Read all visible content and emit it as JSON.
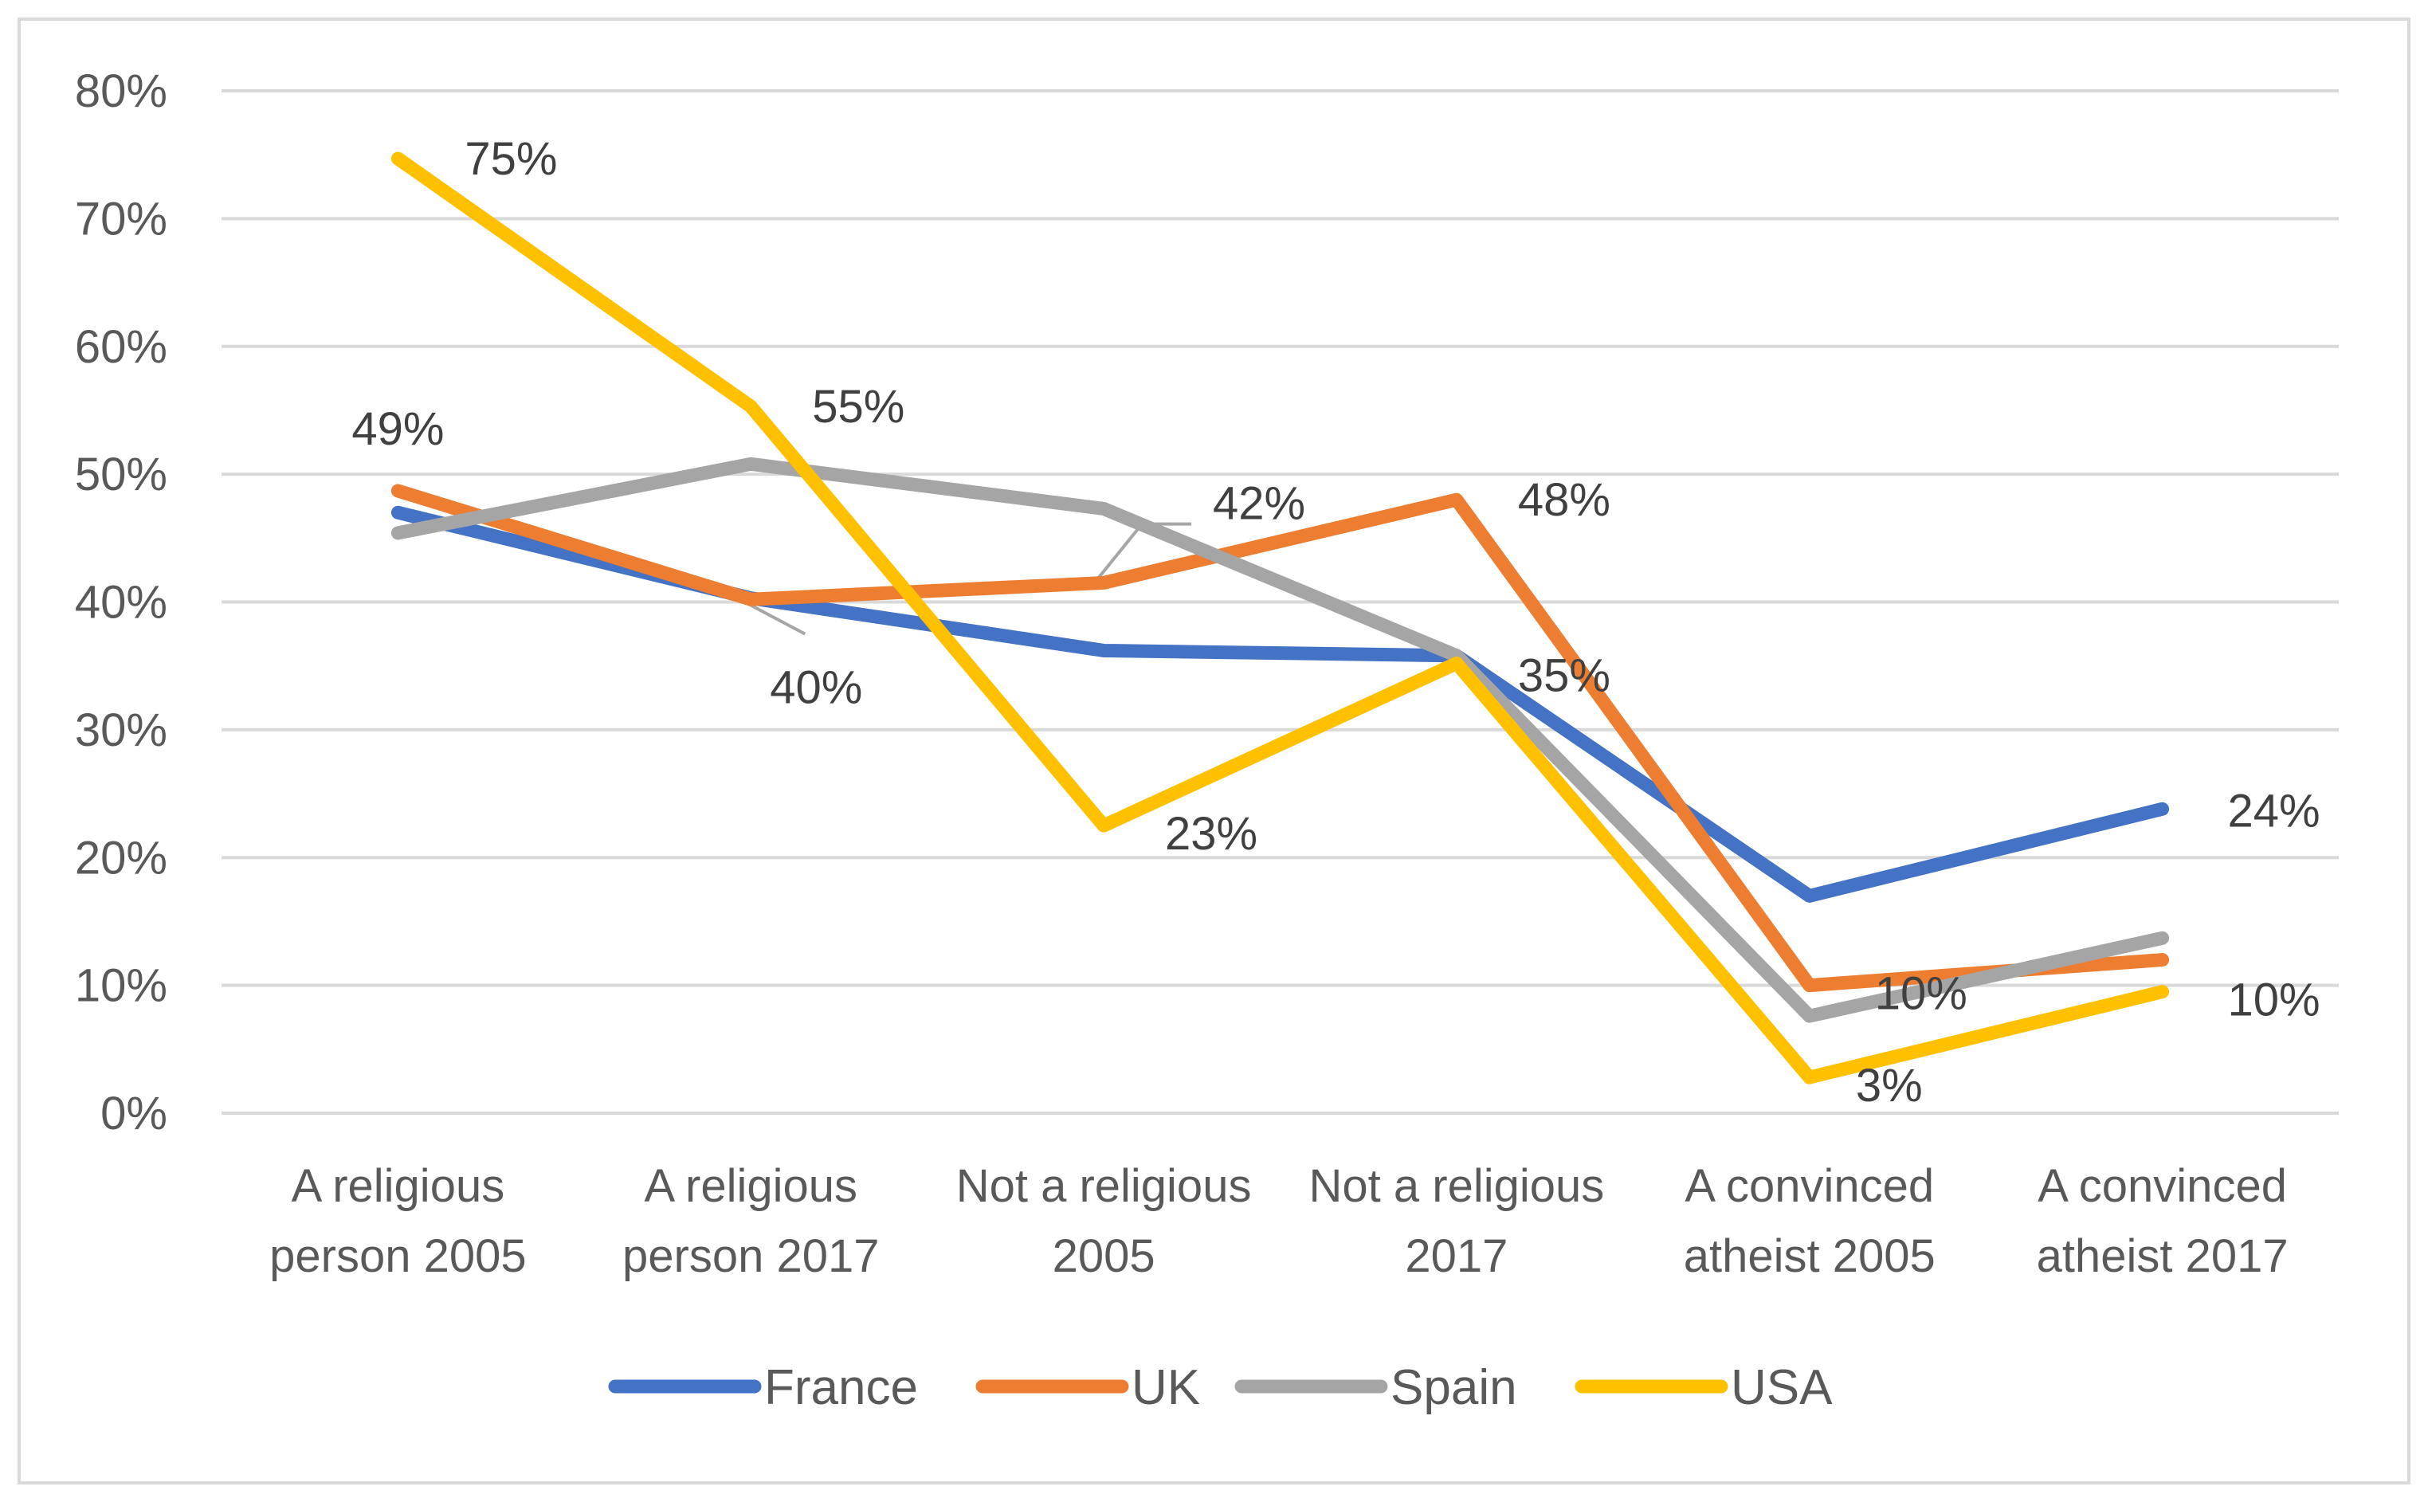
{
  "chart_data": {
    "type": "line",
    "title": "",
    "xlabel": "",
    "ylabel": "",
    "ylim": [
      0,
      80
    ],
    "y_ticks": [
      0,
      10,
      20,
      30,
      40,
      50,
      60,
      70,
      80
    ],
    "y_tick_labels": [
      "0%",
      "10%",
      "20%",
      "30%",
      "40%",
      "50%",
      "60%",
      "70%",
      "80%"
    ],
    "grid": true,
    "legend_position": "bottom",
    "categories": [
      [
        "A religious",
        "person 2005"
      ],
      [
        "A religious",
        "person 2017"
      ],
      [
        "Not a religious",
        "2005"
      ],
      [
        "Not a religious",
        "2017"
      ],
      [
        "A convinced",
        "atheist 2005"
      ],
      [
        "A convinced",
        "atheist 2017"
      ]
    ],
    "series": [
      {
        "name": "France",
        "color": "#4472c4",
        "values": [
          47,
          40.3,
          36.2,
          35.8,
          17,
          23.8
        ]
      },
      {
        "name": "UK",
        "color": "#ed7d31",
        "values": [
          48.7,
          40.2,
          41.5,
          48,
          10,
          12
        ]
      },
      {
        "name": "Spain",
        "color": "#a5a5a5",
        "values": [
          45.4,
          50.8,
          47.3,
          35.8,
          7.6,
          13.7
        ]
      },
      {
        "name": "USA",
        "color": "#ffc000",
        "values": [
          74.7,
          55.3,
          22.5,
          35.2,
          2.8,
          9.5
        ]
      }
    ],
    "data_labels": [
      {
        "text": "49%",
        "series": "UK",
        "index": 0
      },
      {
        "text": "40%",
        "series": "UK",
        "index": 1
      },
      {
        "text": "42%",
        "series": "UK",
        "index": 2
      },
      {
        "text": "48%",
        "series": "UK",
        "index": 3
      },
      {
        "text": "10%",
        "series": "UK",
        "index": 4
      },
      {
        "text": "75%",
        "series": "USA",
        "index": 0
      },
      {
        "text": "55%",
        "series": "USA",
        "index": 1
      },
      {
        "text": "23%",
        "series": "USA",
        "index": 2
      },
      {
        "text": "35%",
        "series": "USA",
        "index": 3
      },
      {
        "text": "3%",
        "series": "USA",
        "index": 4
      },
      {
        "text": "10%",
        "series": "USA",
        "index": 5
      },
      {
        "text": "24%",
        "series": "France",
        "index": 5
      }
    ]
  }
}
